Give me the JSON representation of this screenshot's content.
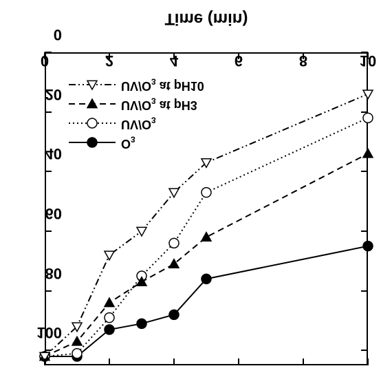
{
  "chart": {
    "type": "line",
    "background_color": "#ffffff",
    "border_color": "#000000",
    "border_width": 2,
    "xlim": [
      0,
      10
    ],
    "ylim": [
      0,
      105
    ],
    "xtick_step": 2,
    "ytick_step": 20,
    "xticks": [
      0,
      2,
      4,
      6,
      8,
      10
    ],
    "yticks": [
      0,
      20,
      40,
      60,
      80,
      100
    ],
    "xlabel": "Time (min)",
    "label_fontsize": 22,
    "tick_fontsize": 22,
    "tick_len_major": 10,
    "series": [
      {
        "name": "O3-series",
        "label_html": "O<sub>3</sub>",
        "x": [
          0,
          1,
          2,
          3,
          4,
          5,
          10
        ],
        "y": [
          102,
          102,
          93,
          91,
          88,
          76,
          65
        ],
        "line_color": "#000000",
        "line_width": 2,
        "dash": "0",
        "marker": "circle-filled",
        "marker_size": 7,
        "marker_fill": "#000000",
        "marker_stroke": "#000000"
      },
      {
        "name": "UVO3-series",
        "label_html": "UV/O<sub>3</sub>",
        "x": [
          0,
          1,
          2,
          3,
          4,
          5,
          10
        ],
        "y": [
          102,
          101,
          89,
          75,
          64,
          47,
          22
        ],
        "line_color": "#000000",
        "line_width": 2,
        "dash": "2 4",
        "marker": "circle-open",
        "marker_size": 7,
        "marker_fill": "#ffffff",
        "marker_stroke": "#000000"
      },
      {
        "name": "UVO3-pH3-series",
        "label_html": "UV/O<sub>3</sub> at pH3",
        "x": [
          0,
          1,
          2,
          3,
          4,
          5,
          10
        ],
        "y": [
          102,
          97,
          84,
          77,
          71,
          62,
          34
        ],
        "line_color": "#000000",
        "line_width": 2,
        "dash": "9 6",
        "marker": "triangle-down-filled",
        "marker_size": 7,
        "marker_fill": "#000000",
        "marker_stroke": "#000000"
      },
      {
        "name": "UVO3-pH10-series",
        "label_html": "UV/O<sub>3</sub> at pH10",
        "x": [
          0,
          1,
          2,
          3,
          4,
          5,
          10
        ],
        "y": [
          102,
          92,
          68,
          60,
          47,
          37,
          14
        ],
        "line_color": "#000000",
        "line_width": 2,
        "dash": "10 4 2 4 2 4",
        "marker": "triangle-up-open",
        "marker_size": 7,
        "marker_fill": "#ffffff",
        "marker_stroke": "#000000"
      }
    ]
  }
}
